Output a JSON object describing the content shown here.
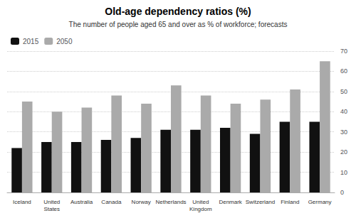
{
  "chart_data": {
    "type": "bar",
    "title": "Old-age dependency ratios (%)",
    "subtitle": "The number of people aged 65 and over as % of workforce; forecasts",
    "categories": [
      "Iceland",
      "United\nStates",
      "Australia",
      "Canada",
      "Norway",
      "Netherlands",
      "United\nKingdom",
      "Denmark",
      "Switzerland",
      "Finland",
      "Germany"
    ],
    "series": [
      {
        "name": "2015",
        "color": "#111111",
        "values": [
          22,
          25,
          25,
          26,
          27,
          31,
          31,
          32,
          29,
          35,
          35
        ]
      },
      {
        "name": "2050",
        "color": "#aaaaaa",
        "values": [
          45,
          40,
          42,
          48,
          44,
          53,
          48,
          44,
          46,
          51,
          65
        ]
      }
    ],
    "ylim": [
      0,
      70
    ],
    "yticks": [
      0,
      10,
      20,
      30,
      40,
      50,
      60,
      70
    ],
    "grid": true,
    "legend": "upper left"
  }
}
